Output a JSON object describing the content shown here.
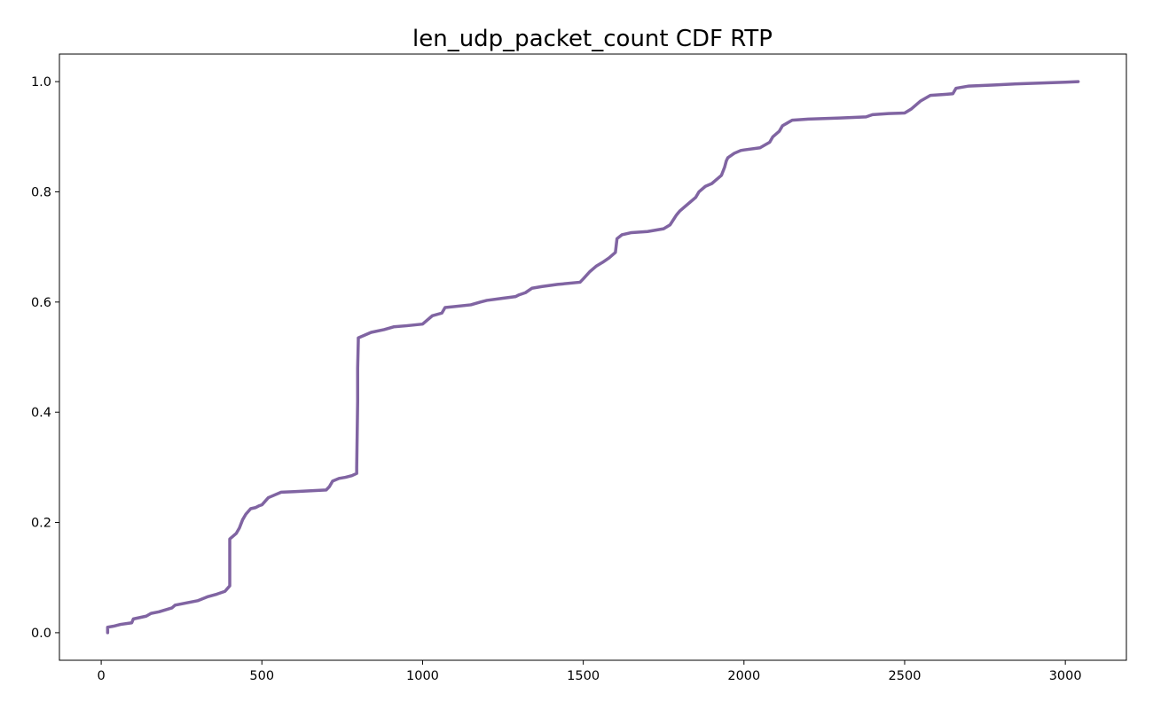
{
  "chart_data": {
    "type": "line",
    "title": "len_udp_packet_count CDF RTP",
    "xlabel": "",
    "ylabel": "",
    "xlim": [
      -130,
      3190
    ],
    "ylim": [
      -0.05,
      1.05
    ],
    "x_ticks": [
      0,
      500,
      1000,
      1500,
      2000,
      2500,
      3000
    ],
    "y_ticks": [
      0.0,
      0.2,
      0.4,
      0.6,
      0.8,
      1.0
    ],
    "x_tick_labels": [
      "0",
      "500",
      "1000",
      "1500",
      "2000",
      "2500",
      "3000"
    ],
    "y_tick_labels": [
      "0.0",
      "0.2",
      "0.4",
      "0.6",
      "0.8",
      "1.0"
    ],
    "grid": false,
    "legend": "none",
    "colors": {
      "line": "#8064a2"
    },
    "series": [
      {
        "x": [
          20,
          20,
          40,
          60,
          95,
          100,
          140,
          155,
          180,
          220,
          230,
          300,
          330,
          360,
          385,
          400,
          400,
          410,
          420,
          430,
          440,
          450,
          465,
          480,
          490,
          500,
          520,
          540,
          560,
          600,
          700,
          710,
          720,
          740,
          760,
          780,
          795,
          795,
          798,
          798,
          800,
          800,
          820,
          840,
          880,
          910,
          950,
          1000,
          1030,
          1060,
          1070,
          1150,
          1180,
          1200,
          1250,
          1290,
          1300,
          1320,
          1340,
          1370,
          1420,
          1490,
          1500,
          1520,
          1540,
          1560,
          1580,
          1600,
          1605,
          1620,
          1650,
          1700,
          1750,
          1770,
          1790,
          1800,
          1830,
          1850,
          1860,
          1880,
          1900,
          1930,
          1940,
          1945,
          1950,
          1960,
          1970,
          1990,
          2000,
          2050,
          2080,
          2090,
          2100,
          2110,
          2120,
          2150,
          2200,
          2300,
          2380,
          2400,
          2450,
          2500,
          2520,
          2550,
          2580,
          2630,
          2650,
          2660,
          2700,
          2780,
          2850,
          3000,
          3040
        ],
        "y": [
          0.0,
          0.01,
          0.012,
          0.015,
          0.018,
          0.025,
          0.03,
          0.035,
          0.038,
          0.045,
          0.05,
          0.058,
          0.065,
          0.07,
          0.075,
          0.085,
          0.17,
          0.175,
          0.18,
          0.19,
          0.205,
          0.215,
          0.225,
          0.227,
          0.23,
          0.232,
          0.245,
          0.25,
          0.255,
          0.256,
          0.259,
          0.265,
          0.275,
          0.28,
          0.282,
          0.285,
          0.289,
          0.3,
          0.42,
          0.48,
          0.53,
          0.535,
          0.54,
          0.545,
          0.55,
          0.555,
          0.557,
          0.56,
          0.575,
          0.58,
          0.59,
          0.595,
          0.6,
          0.603,
          0.607,
          0.61,
          0.613,
          0.617,
          0.625,
          0.628,
          0.632,
          0.636,
          0.642,
          0.655,
          0.665,
          0.672,
          0.68,
          0.69,
          0.715,
          0.722,
          0.726,
          0.728,
          0.733,
          0.74,
          0.758,
          0.765,
          0.78,
          0.79,
          0.8,
          0.81,
          0.815,
          0.83,
          0.845,
          0.856,
          0.862,
          0.866,
          0.87,
          0.875,
          0.876,
          0.88,
          0.89,
          0.9,
          0.905,
          0.91,
          0.92,
          0.93,
          0.932,
          0.934,
          0.936,
          0.94,
          0.942,
          0.943,
          0.95,
          0.965,
          0.975,
          0.977,
          0.978,
          0.988,
          0.992,
          0.994,
          0.996,
          0.999,
          1.0
        ]
      }
    ]
  }
}
